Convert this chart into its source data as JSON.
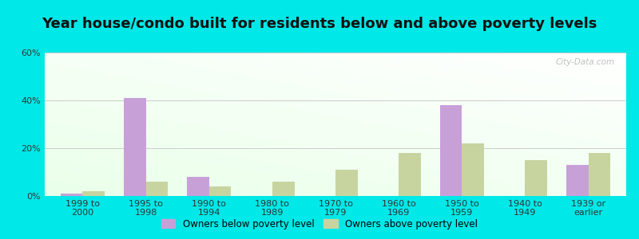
{
  "title": "Year house/condo built for residents below and above poverty levels",
  "categories": [
    "1999 to\n2000",
    "1995 to\n1998",
    "1990 to\n1994",
    "1980 to\n1989",
    "1970 to\n1979",
    "1960 to\n1969",
    "1950 to\n1959",
    "1940 to\n1949",
    "1939 or\nearlier"
  ],
  "below_poverty": [
    1.0,
    41.0,
    8.0,
    0.0,
    0.0,
    0.0,
    38.0,
    0.0,
    13.0
  ],
  "above_poverty": [
    2.0,
    6.0,
    4.0,
    6.0,
    11.0,
    18.0,
    22.0,
    15.0,
    18.0
  ],
  "below_color": "#c8a0d8",
  "above_color": "#c8d4a0",
  "ylim": [
    0,
    60
  ],
  "yticks": [
    0,
    20,
    40,
    60
  ],
  "ytick_labels": [
    "0%",
    "20%",
    "40%",
    "60%"
  ],
  "legend_below": "Owners below poverty level",
  "legend_above": "Owners above poverty level",
  "bar_width": 0.35,
  "outer_background": "#00e8e8",
  "title_fontsize": 13,
  "tick_fontsize": 8.0,
  "watermark": "City-Data.com"
}
